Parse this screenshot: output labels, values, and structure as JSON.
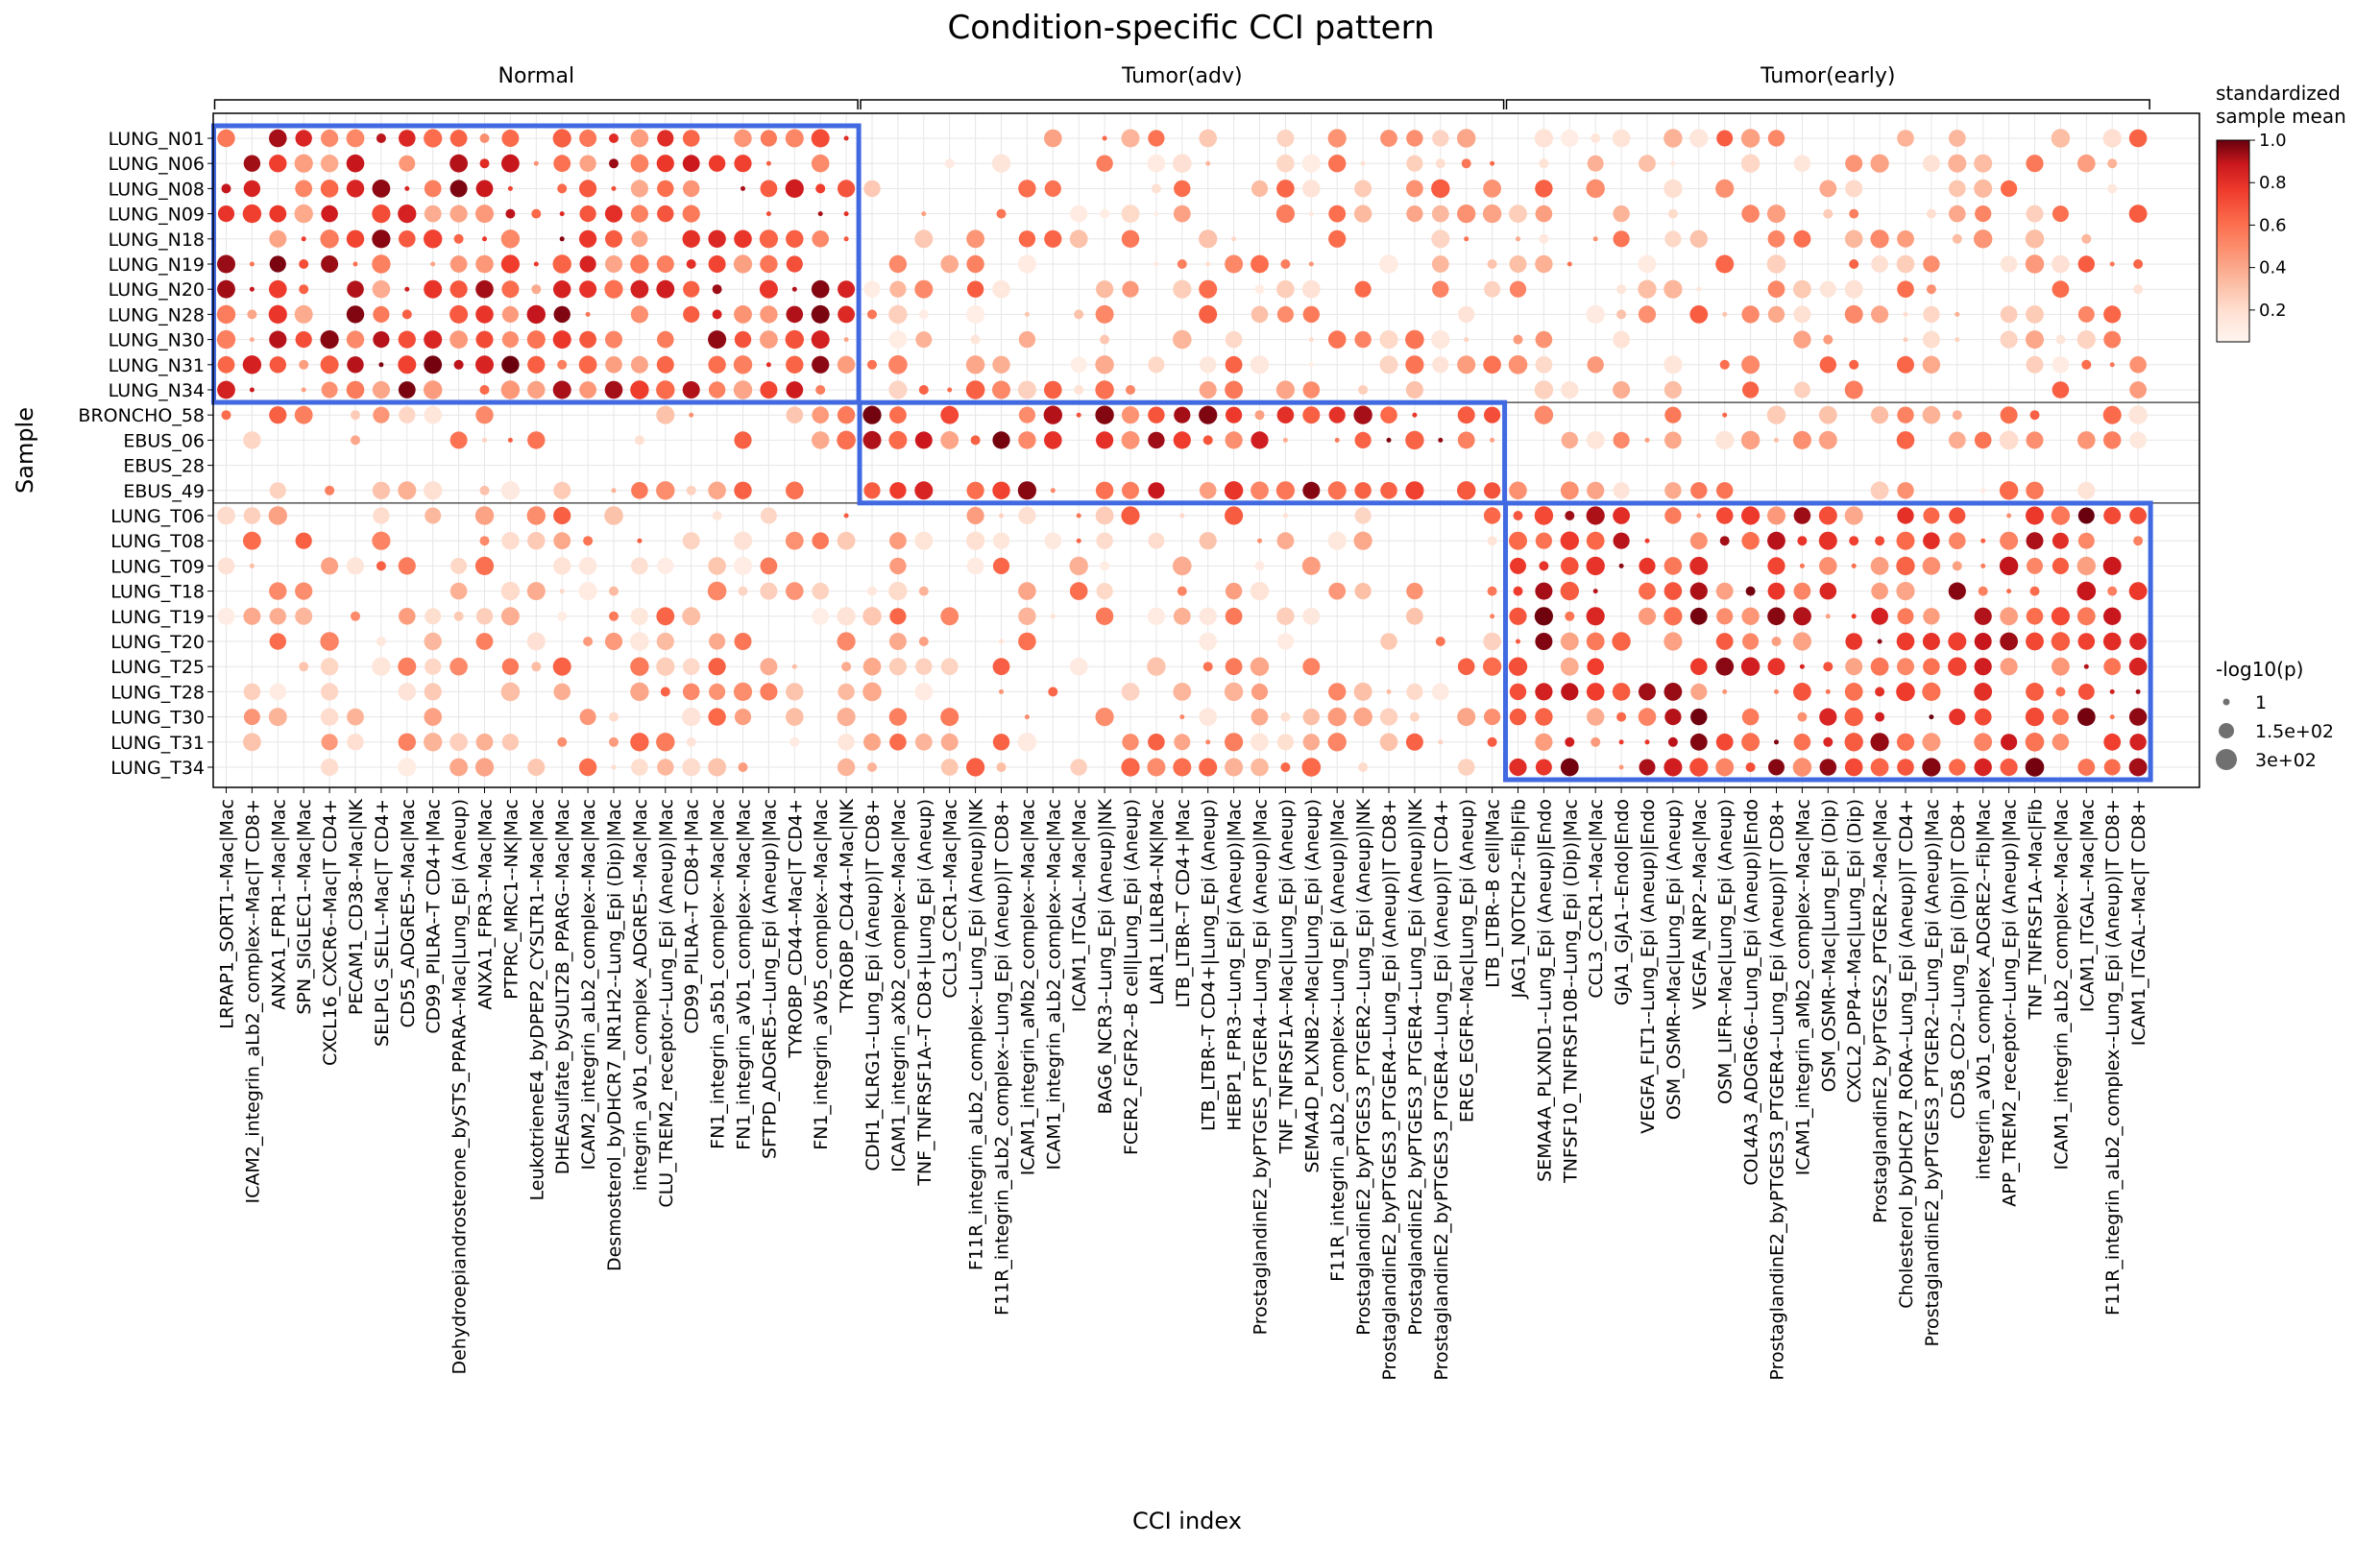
{
  "chart_data": {
    "type": "dotplot",
    "title": "Condition-specific CCI pattern",
    "xlabel": "CCI index",
    "ylabel": "Sample",
    "groups": [
      {
        "name": "Normal",
        "count": 25
      },
      {
        "name": "Tumor(adv)",
        "count": 25
      },
      {
        "name": "Tumor(early)",
        "count": 25
      }
    ],
    "rows": [
      "LUNG_N01",
      "LUNG_N06",
      "LUNG_N08",
      "LUNG_N09",
      "LUNG_N18",
      "LUNG_N19",
      "LUNG_N20",
      "LUNG_N28",
      "LUNG_N30",
      "LUNG_N31",
      "LUNG_N34",
      "BRONCHO_58",
      "EBUS_06",
      "EBUS_28",
      "EBUS_49",
      "LUNG_T06",
      "LUNG_T08",
      "LUNG_T09",
      "LUNG_T18",
      "LUNG_T19",
      "LUNG_T20",
      "LUNG_T25",
      "LUNG_T28",
      "LUNG_T30",
      "LUNG_T31",
      "LUNG_T34"
    ],
    "row_groups": [
      {
        "name": "Normal",
        "rows": 11
      },
      {
        "name": "Tumor(adv)",
        "rows": 4
      },
      {
        "name": "Tumor(early)",
        "rows": 11
      }
    ],
    "columns": [
      "LRPAP1_SORT1--Mac|Mac",
      "ICAM2_integrin_aLb2_complex--Mac|T CD8+",
      "ANXA1_FPR1--Mac|Mac",
      "SPN_SIGLEC1--Mac|Mac",
      "CXCL16_CXCR6--Mac|T CD4+",
      "PECAM1_CD38--Mac|NK",
      "SELPLG_SELL--Mac|T CD4+",
      "CD55_ADGRE5--Mac|Mac",
      "CD99_PILRA--T CD4+|Mac",
      "Dehydroepiandrosterone_bySTS_PPARA--Mac|Lung_Epi (Aneup)",
      "ANXA1_FPR3--Mac|Mac",
      "PTPRC_MRC1--NK|Mac",
      "LeukotrieneE4_byDPEP2_CYSLTR1--Mac|Mac",
      "DHEAsulfate_bySULT2B_PPARG--Mac|Mac",
      "ICAM2_integrin_aLb2_complex--Mac|Mac",
      "Desmosterol_byDHCR7_NR1H2--Lung_Epi (Dip)|Mac",
      "integrin_aVb1_complex_ADGRE5--Mac|Mac",
      "CLU_TREM2_receptor--Lung_Epi (Aneup)|Mac",
      "CD99_PILRA--T CD8+|Mac",
      "FN1_integrin_a5b1_complex--Mac|Mac",
      "FN1_integrin_aVb1_complex--Mac|Mac",
      "SFTPD_ADGRE5--Lung_Epi (Aneup)|Mac",
      "TYROBP_CD44--Mac|T CD4+",
      "FN1_integrin_aVb5_complex--Mac|Mac",
      "TYROBP_CD44--Mac|NK",
      "CDH1_KLRG1--Lung_Epi (Aneup)|T CD8+",
      "ICAM1_integrin_aXb2_complex--Mac|Mac",
      "TNF_TNFRSF1A--T CD8+|Lung_Epi (Aneup)",
      "CCL3_CCR1--Mac|Mac",
      "F11R_integrin_aLb2_complex--Lung_Epi (Aneup)|NK",
      "F11R_integrin_aLb2_complex--Lung_Epi (Aneup)|T CD8+",
      "ICAM1_integrin_aMb2_complex--Mac|Mac",
      "ICAM1_integrin_aLb2_complex--Mac|Mac",
      "ICAM1_ITGAL--Mac|Mac",
      "BAG6_NCR3--Lung_Epi (Aneup)|NK",
      "FCER2_FGFR2--B cell|Lung_Epi (Aneup)",
      "LAIR1_LILRB4--NK|Mac",
      "LTB_LTBR--T CD4+|Mac",
      "LTB_LTBR--T CD4+|Lung_Epi (Aneup)",
      "HEBP1_FPR3--Lung_Epi (Aneup)|Mac",
      "ProstaglandinE2_byPTGES_PTGER4--Lung_Epi (Aneup)|Mac",
      "TNF_TNFRSF1A--Mac|Lung_Epi (Aneup)",
      "SEMA4D_PLXNB2--Mac|Lung_Epi (Aneup)",
      "F11R_integrin_aLb2_complex--Lung_Epi (Aneup)|Mac",
      "ProstaglandinE2_byPTGES3_PTGER2--Lung_Epi (Aneup)|NK",
      "ProstaglandinE2_byPTGES3_PTGER4--Lung_Epi (Aneup)|T CD8+",
      "ProstaglandinE2_byPTGES3_PTGER4--Lung_Epi (Aneup)|NK",
      "ProstaglandinE2_byPTGES3_PTGER4--Lung_Epi (Aneup)|T CD4+",
      "EREG_EGFR--Mac|Lung_Epi (Aneup)",
      "LTB_LTBR--B cell|Mac",
      "JAG1_NOTCH2--Fib|Fib",
      "SEMA4A_PLXND1--Lung_Epi (Aneup)|Endo",
      "TNFSF10_TNFRSF10B--Lung_Epi (Dip)|Mac",
      "CCL3_CCR1--Mac|Mac",
      "GJA1_GJA1--Endo|Endo",
      "VEGFA_FLT1--Lung_Epi (Aneup)|Endo",
      "OSM_OSMR--Mac|Lung_Epi (Aneup)",
      "VEGFA_NRP2--Mac|Mac",
      "OSM_LIFR--Mac|Lung_Epi (Aneup)",
      "COL4A3_ADGRG6--Lung_Epi (Aneup)|Endo",
      "ProstaglandinE2_byPTGES3_PTGER4--Lung_Epi (Aneup)|T CD8+",
      "ICAM1_integrin_aMb2_complex--Mac|Mac",
      "OSM_OSMR--Mac|Lung_Epi (Dip)",
      "CXCL2_DPP4--Mac|Lung_Epi (Dip)",
      "ProstaglandinE2_byPTGES2_PTGER2--Mac|Mac",
      "Cholesterol_byDHCR7_RORA--Lung_Epi (Aneup)|T CD4+",
      "ProstaglandinE2_byPTGES3_PTGER2--Lung_Epi (Aneup)|Mac",
      "CD58_CD2--Lung_Epi (Dip)|T CD8+",
      "integrin_aVb1_complex_ADGRE2--Fib|Mac",
      "APP_TREM2_receptor--Lung_Epi (Aneup)|Mac",
      "TNF_TNFRSF1A--Mac|Fib",
      "ICAM1_integrin_aLb2_complex--Mac|Mac",
      "ICAM1_ITGAL--Mac|Mac",
      "F11R_integrin_aLb2_complex--Lung_Epi (Aneup)|T CD8+",
      "ICAM1_ITGAL--Mac|T CD8+"
    ],
    "value_range": [
      0,
      1
    ],
    "note_values": "color = standardized sample mean (0-1); size = -log10(p)",
    "colorbar": {
      "title_line1": "standardized",
      "title_line2": "sample mean",
      "ticks": [
        "0.2",
        "0.4",
        "0.6",
        "0.8",
        "1.0"
      ],
      "tick_values": [
        0.2,
        0.4,
        0.6,
        0.8,
        1.0
      ]
    },
    "size_legend": {
      "title": "-log10(p)",
      "labels": [
        "1",
        "1.5e+02",
        "3e+02"
      ],
      "values": [
        1,
        150,
        300
      ]
    },
    "highlight_boxes": [
      {
        "group": "Normal",
        "rows": [
          0,
          10
        ],
        "cols": [
          0,
          24
        ]
      },
      {
        "group": "Tumor(adv)",
        "rows": [
          11,
          14
        ],
        "cols": [
          25,
          49
        ]
      },
      {
        "group": "Tumor(early)",
        "rows": [
          15,
          25
        ],
        "cols": [
          50,
          74
        ]
      }
    ],
    "colors": {
      "highlight": "#4169e1",
      "low": "#fff5f0",
      "mid": "#fb6a4a",
      "high": "#67000d",
      "grid": "#e6e6e6",
      "dot_gray": "#707070"
    }
  }
}
